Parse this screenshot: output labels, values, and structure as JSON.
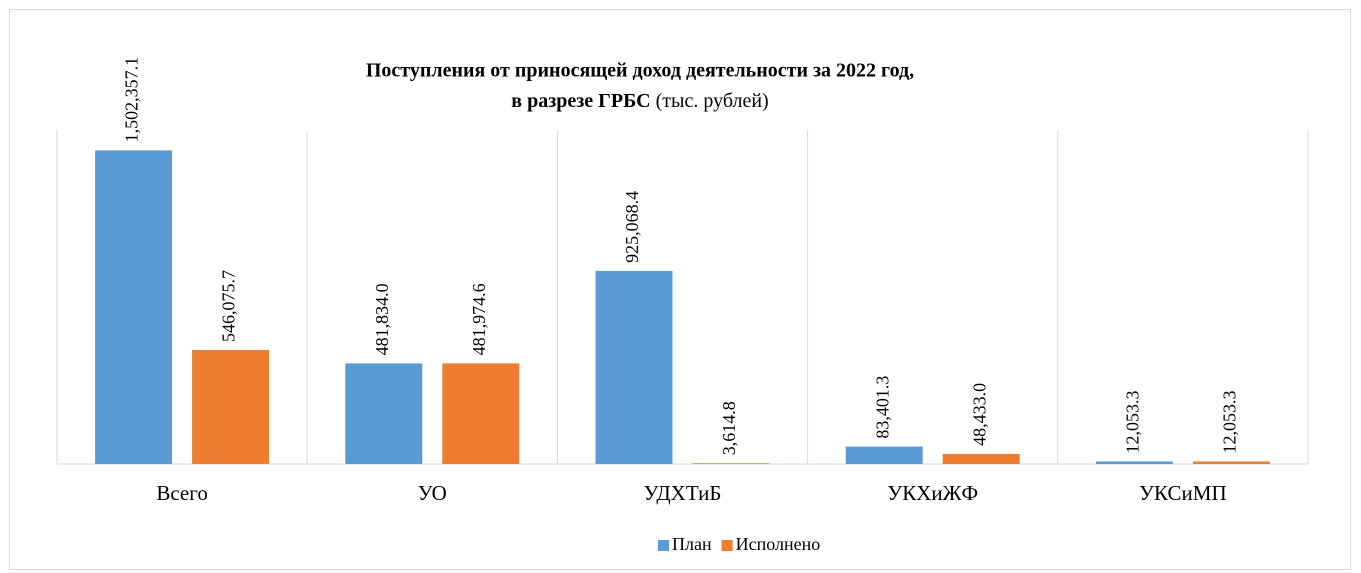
{
  "chart_data": {
    "type": "bar",
    "title": [
      "Поступления от приносящей доход деятельности за 2022 год,",
      "в разрезе ГРБС"
    ],
    "title_note": "(тыс. рублей)",
    "categories": [
      "Всего",
      "УО",
      "УДХТиБ",
      "УКХиЖФ",
      "УКСиМП"
    ],
    "series": [
      {
        "name": "План",
        "color": "#5b9bd5",
        "values": [
          1502357.1,
          481834.0,
          925068.4,
          83401.3,
          12053.3
        ],
        "value_labels": [
          "1,502,357.1",
          "481,834.0",
          "925,068.4",
          "83,401.3",
          "12,053.3"
        ]
      },
      {
        "name": "Исполнено",
        "color": "#ed7d31",
        "values": [
          546075.7,
          481974.6,
          3614.8,
          48433.0,
          12053.3
        ],
        "value_labels": [
          "546,075.7",
          "481,974.6",
          "3,614.8",
          "48,433.0",
          "12,053.3"
        ]
      }
    ],
    "ylim": [
      0,
      1600000
    ],
    "legend": "bottom"
  }
}
